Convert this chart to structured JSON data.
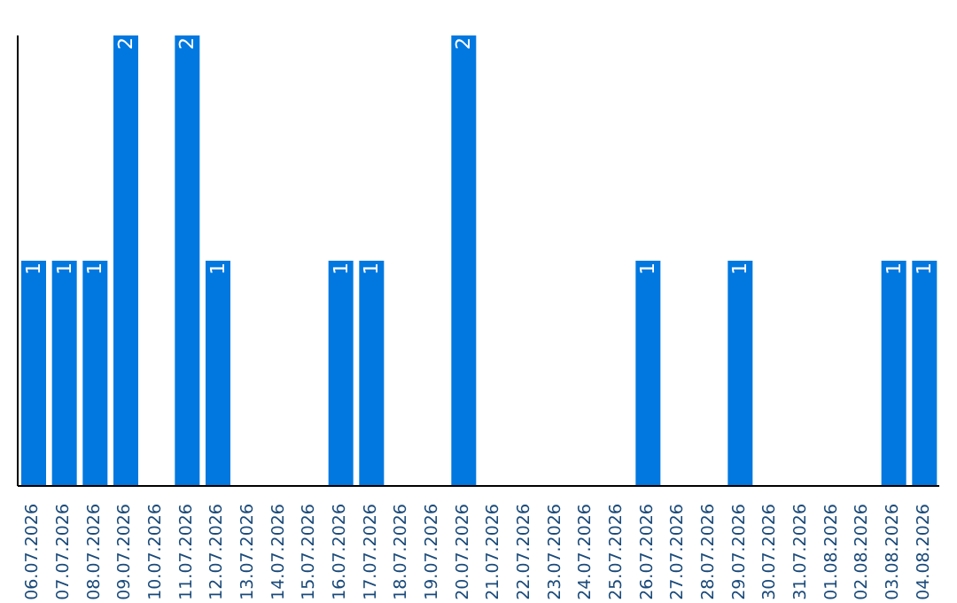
{
  "chart_data": {
    "type": "bar",
    "categories": [
      "06.07.2026",
      "07.07.2026",
      "08.07.2026",
      "09.07.2026",
      "10.07.2026",
      "11.07.2026",
      "12.07.2026",
      "13.07.2026",
      "14.07.2026",
      "15.07.2026",
      "16.07.2026",
      "17.07.2026",
      "18.07.2026",
      "19.07.2026",
      "20.07.2026",
      "21.07.2026",
      "22.07.2026",
      "23.07.2026",
      "24.07.2026",
      "25.07.2026",
      "26.07.2026",
      "27.07.2026",
      "28.07.2026",
      "29.07.2026",
      "30.07.2026",
      "31.07.2026",
      "01.08.2026",
      "02.08.2026",
      "03.08.2026",
      "04.08.2026"
    ],
    "values": [
      1,
      1,
      1,
      2,
      0,
      2,
      1,
      0,
      0,
      0,
      1,
      1,
      0,
      0,
      2,
      0,
      0,
      0,
      0,
      0,
      1,
      0,
      0,
      1,
      0,
      0,
      0,
      0,
      1,
      1
    ],
    "value_labels": [
      "1",
      "1",
      "1",
      "2",
      null,
      "2",
      "1",
      null,
      null,
      null,
      "1",
      "1",
      null,
      null,
      "2",
      null,
      null,
      null,
      null,
      null,
      "1",
      null,
      null,
      "1",
      null,
      null,
      null,
      null,
      "1",
      "1"
    ],
    "color": "#0078e0",
    "tick_labels": "x",
    "grid": false
  }
}
